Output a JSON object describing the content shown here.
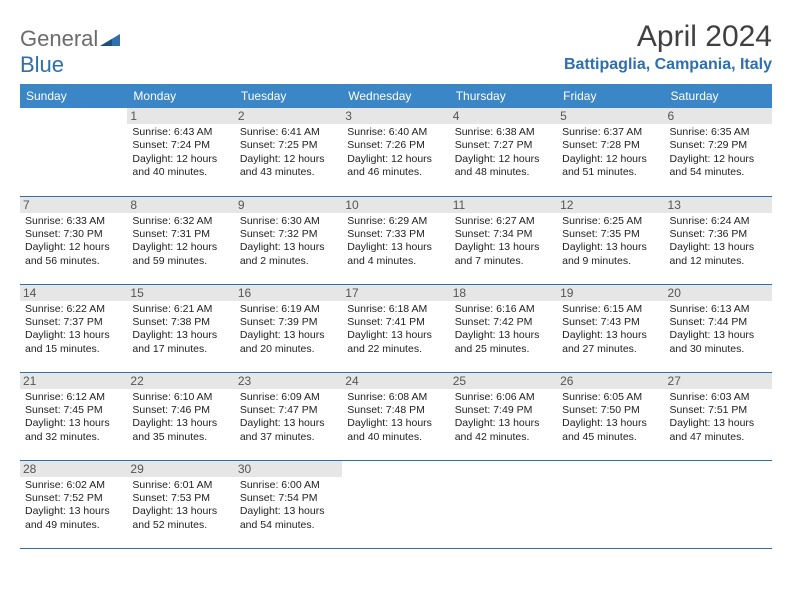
{
  "logo": {
    "word1": "General",
    "word2": "Blue"
  },
  "title": "April 2024",
  "subtitle": "Battipaglia, Campania, Italy",
  "colors": {
    "header_bg": "#3b86c6",
    "header_fg": "#ffffff",
    "accent": "#2e6fb0",
    "daynum_bg": "#e6e6e6",
    "text": "#222222",
    "logo_gray": "#6b6b6b"
  },
  "weekdays": [
    "Sunday",
    "Monday",
    "Tuesday",
    "Wednesday",
    "Thursday",
    "Friday",
    "Saturday"
  ],
  "weeks": [
    [
      null,
      {
        "n": "1",
        "sr": "6:43 AM",
        "ss": "7:24 PM",
        "dl": "12 hours and 40 minutes."
      },
      {
        "n": "2",
        "sr": "6:41 AM",
        "ss": "7:25 PM",
        "dl": "12 hours and 43 minutes."
      },
      {
        "n": "3",
        "sr": "6:40 AM",
        "ss": "7:26 PM",
        "dl": "12 hours and 46 minutes."
      },
      {
        "n": "4",
        "sr": "6:38 AM",
        "ss": "7:27 PM",
        "dl": "12 hours and 48 minutes."
      },
      {
        "n": "5",
        "sr": "6:37 AM",
        "ss": "7:28 PM",
        "dl": "12 hours and 51 minutes."
      },
      {
        "n": "6",
        "sr": "6:35 AM",
        "ss": "7:29 PM",
        "dl": "12 hours and 54 minutes."
      }
    ],
    [
      {
        "n": "7",
        "sr": "6:33 AM",
        "ss": "7:30 PM",
        "dl": "12 hours and 56 minutes."
      },
      {
        "n": "8",
        "sr": "6:32 AM",
        "ss": "7:31 PM",
        "dl": "12 hours and 59 minutes."
      },
      {
        "n": "9",
        "sr": "6:30 AM",
        "ss": "7:32 PM",
        "dl": "13 hours and 2 minutes."
      },
      {
        "n": "10",
        "sr": "6:29 AM",
        "ss": "7:33 PM",
        "dl": "13 hours and 4 minutes."
      },
      {
        "n": "11",
        "sr": "6:27 AM",
        "ss": "7:34 PM",
        "dl": "13 hours and 7 minutes."
      },
      {
        "n": "12",
        "sr": "6:25 AM",
        "ss": "7:35 PM",
        "dl": "13 hours and 9 minutes."
      },
      {
        "n": "13",
        "sr": "6:24 AM",
        "ss": "7:36 PM",
        "dl": "13 hours and 12 minutes."
      }
    ],
    [
      {
        "n": "14",
        "sr": "6:22 AM",
        "ss": "7:37 PM",
        "dl": "13 hours and 15 minutes."
      },
      {
        "n": "15",
        "sr": "6:21 AM",
        "ss": "7:38 PM",
        "dl": "13 hours and 17 minutes."
      },
      {
        "n": "16",
        "sr": "6:19 AM",
        "ss": "7:39 PM",
        "dl": "13 hours and 20 minutes."
      },
      {
        "n": "17",
        "sr": "6:18 AM",
        "ss": "7:41 PM",
        "dl": "13 hours and 22 minutes."
      },
      {
        "n": "18",
        "sr": "6:16 AM",
        "ss": "7:42 PM",
        "dl": "13 hours and 25 minutes."
      },
      {
        "n": "19",
        "sr": "6:15 AM",
        "ss": "7:43 PM",
        "dl": "13 hours and 27 minutes."
      },
      {
        "n": "20",
        "sr": "6:13 AM",
        "ss": "7:44 PM",
        "dl": "13 hours and 30 minutes."
      }
    ],
    [
      {
        "n": "21",
        "sr": "6:12 AM",
        "ss": "7:45 PM",
        "dl": "13 hours and 32 minutes."
      },
      {
        "n": "22",
        "sr": "6:10 AM",
        "ss": "7:46 PM",
        "dl": "13 hours and 35 minutes."
      },
      {
        "n": "23",
        "sr": "6:09 AM",
        "ss": "7:47 PM",
        "dl": "13 hours and 37 minutes."
      },
      {
        "n": "24",
        "sr": "6:08 AM",
        "ss": "7:48 PM",
        "dl": "13 hours and 40 minutes."
      },
      {
        "n": "25",
        "sr": "6:06 AM",
        "ss": "7:49 PM",
        "dl": "13 hours and 42 minutes."
      },
      {
        "n": "26",
        "sr": "6:05 AM",
        "ss": "7:50 PM",
        "dl": "13 hours and 45 minutes."
      },
      {
        "n": "27",
        "sr": "6:03 AM",
        "ss": "7:51 PM",
        "dl": "13 hours and 47 minutes."
      }
    ],
    [
      {
        "n": "28",
        "sr": "6:02 AM",
        "ss": "7:52 PM",
        "dl": "13 hours and 49 minutes."
      },
      {
        "n": "29",
        "sr": "6:01 AM",
        "ss": "7:53 PM",
        "dl": "13 hours and 52 minutes."
      },
      {
        "n": "30",
        "sr": "6:00 AM",
        "ss": "7:54 PM",
        "dl": "13 hours and 54 minutes."
      },
      null,
      null,
      null,
      null
    ]
  ],
  "labels": {
    "sunrise": "Sunrise:",
    "sunset": "Sunset:",
    "daylight": "Daylight:"
  }
}
